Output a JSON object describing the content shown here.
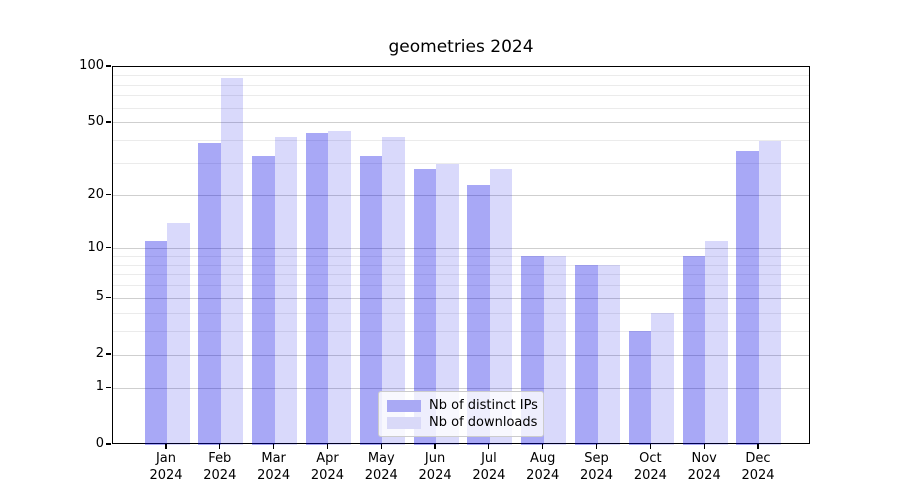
{
  "title": "geometries 2024",
  "legend": {
    "items": [
      {
        "label": "Nb of distinct IPs",
        "color": "#a9a9f4"
      },
      {
        "label": "Nb of downloads",
        "color": "#d9d9f8"
      }
    ]
  },
  "y_axis": {
    "major_ticks": [
      0,
      1,
      2,
      5,
      10,
      20,
      50,
      100
    ],
    "minor_ticks": [
      3,
      4,
      6,
      7,
      8,
      9,
      30,
      40,
      60,
      70,
      80,
      90
    ]
  },
  "x_axis": {
    "months": [
      "Jan",
      "Feb",
      "Mar",
      "Apr",
      "May",
      "Jun",
      "Jul",
      "Aug",
      "Sep",
      "Oct",
      "Nov",
      "Dec"
    ],
    "year": "2024"
  },
  "colors": {
    "bar_ips_fill": "rgba(0,0,230,0.34)",
    "bar_downloads_fill": "rgba(0,0,230,0.15)",
    "grid_major": "#cfcfcf",
    "grid_minor": "#ebebeb",
    "axis": "#000000",
    "background": "#ffffff"
  },
  "chart_data": {
    "type": "bar",
    "title": "geometries 2024",
    "categories": [
      "Jan 2024",
      "Feb 2024",
      "Mar 2024",
      "Apr 2024",
      "May 2024",
      "Jun 2024",
      "Jul 2024",
      "Aug 2024",
      "Sep 2024",
      "Oct 2024",
      "Nov 2024",
      "Dec 2024"
    ],
    "series": [
      {
        "name": "Nb of distinct IPs",
        "values": [
          11,
          39,
          33,
          44,
          33,
          28,
          23,
          9,
          8,
          3,
          9,
          35
        ]
      },
      {
        "name": "Nb of downloads",
        "values": [
          14,
          87,
          42,
          45,
          42,
          30,
          28,
          9,
          8,
          4,
          11,
          40
        ]
      }
    ],
    "yscale": "log1p",
    "ylim": [
      0,
      100
    ],
    "ytick_values": [
      0,
      1,
      2,
      5,
      10,
      20,
      50,
      100
    ],
    "grid": "on",
    "legend_position": "lower center"
  }
}
